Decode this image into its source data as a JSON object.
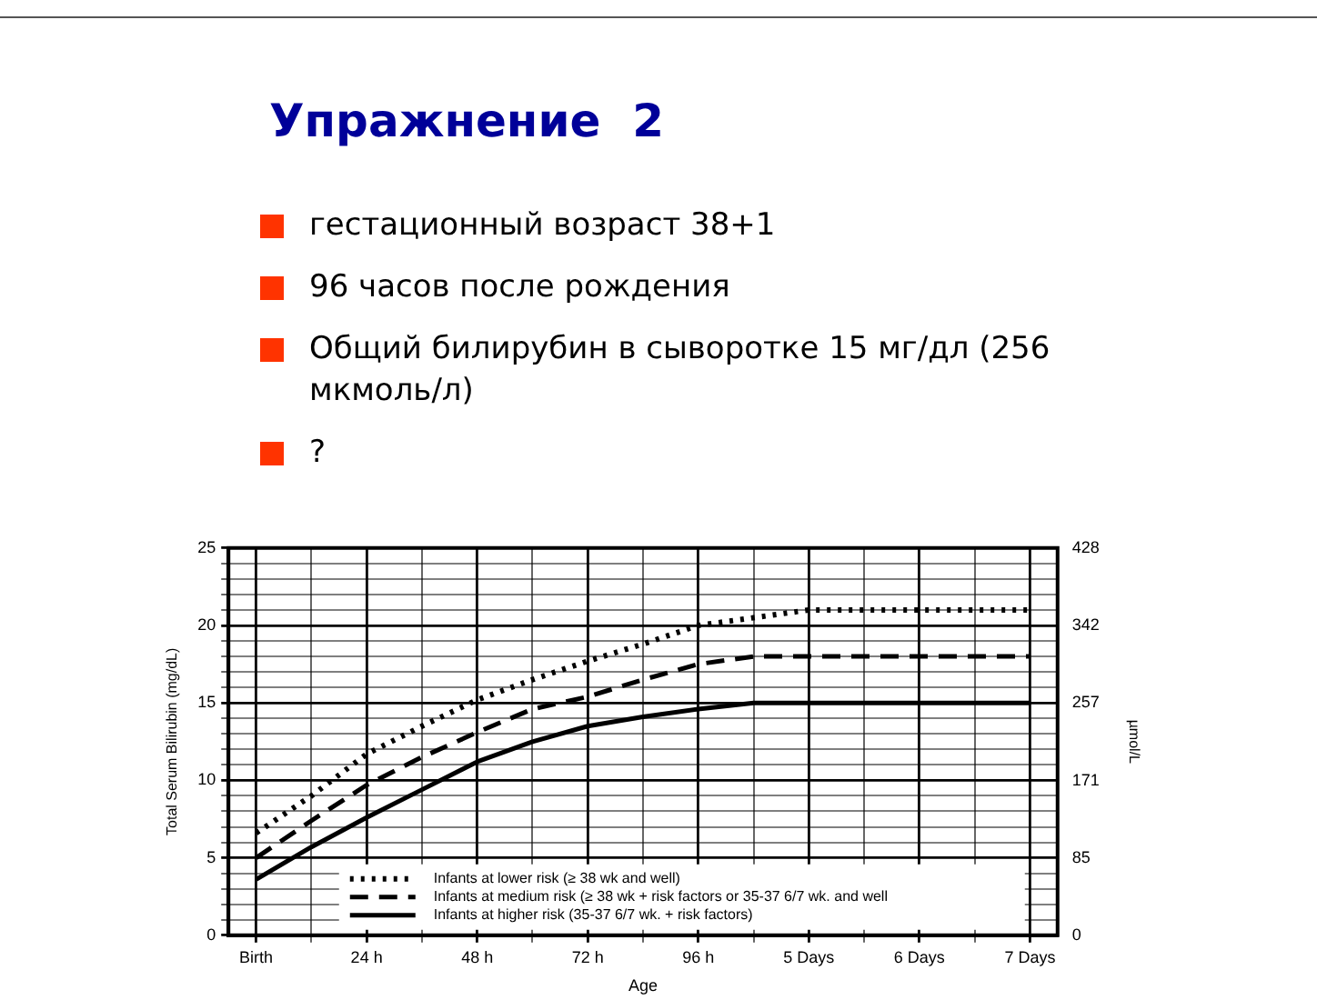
{
  "chart_data": {
    "type": "line",
    "title": "Упражнение  2",
    "annotations": [
      "гестационный возраст 38+1",
      "96 часов после рождения",
      "Общий билирубин в сыворотке 15 мг/дл (256 мкмоль/л)",
      "?"
    ],
    "xlabel": "Age",
    "ylabel": "Total Serum Bilirubin (mg/dL)",
    "y2label": "µmol/L",
    "categories": [
      "Birth",
      null,
      "24 h",
      null,
      "48 h",
      null,
      "72 h",
      null,
      "96 h",
      null,
      "5 Days",
      null,
      "6 Days",
      null,
      "7 Days"
    ],
    "series": [
      {
        "name": "Infants at lower risk (≥ 38 wk and well)",
        "color": "#000000",
        "line_style": "dotted",
        "values": [
          6.6,
          9,
          11.7,
          13.5,
          15.2,
          16.5,
          17.7,
          18.8,
          20,
          20.5,
          21,
          21,
          21,
          21,
          21
        ]
      },
      {
        "name": "Infants at medium risk (≥ 38 wk + risk factors or 35-37 6/7 wk. and well",
        "color": "#000000",
        "line_style": "dashed",
        "values": [
          5,
          7.4,
          9.7,
          11.5,
          13.1,
          14.6,
          15.4,
          16.5,
          17.5,
          18,
          18,
          18,
          18,
          18,
          18
        ]
      },
      {
        "name": "Infants at higher risk (35-37 6/7 wk. + risk factors)",
        "color": "#000000",
        "line_style": "solid",
        "values": [
          3.6,
          5.7,
          7.6,
          9.4,
          11.2,
          12.5,
          13.5,
          14.1,
          14.6,
          15,
          15,
          15,
          15,
          15,
          15
        ]
      }
    ],
    "ylim": [
      0,
      25
    ],
    "yticks": [
      0,
      {
        "value": 1,
        "label": null
      },
      {
        "value": 2,
        "label": null
      },
      {
        "value": 3,
        "label": null
      },
      {
        "value": 4,
        "label": null
      },
      5,
      {
        "value": 6,
        "label": null
      },
      {
        "value": 7,
        "label": null
      },
      {
        "value": 8,
        "label": null
      },
      {
        "value": 9,
        "label": null
      },
      10,
      {
        "value": 11,
        "label": null
      },
      {
        "value": 12,
        "label": null
      },
      {
        "value": 13,
        "label": null
      },
      {
        "value": 14,
        "label": null
      },
      15,
      {
        "value": 16,
        "label": null
      },
      {
        "value": 17,
        "label": null
      },
      {
        "value": 18,
        "label": null
      },
      {
        "value": 19,
        "label": null
      },
      20,
      {
        "value": 21,
        "label": null
      },
      {
        "value": 22,
        "label": null
      },
      {
        "value": 23,
        "label": null
      },
      {
        "value": 24,
        "label": null
      },
      25
    ],
    "y2lim": [
      0,
      428
    ],
    "y2ticks": [
      0,
      85,
      171,
      257,
      342,
      428
    ],
    "grid": true,
    "legend": "bottom",
    "marker": "none"
  }
}
